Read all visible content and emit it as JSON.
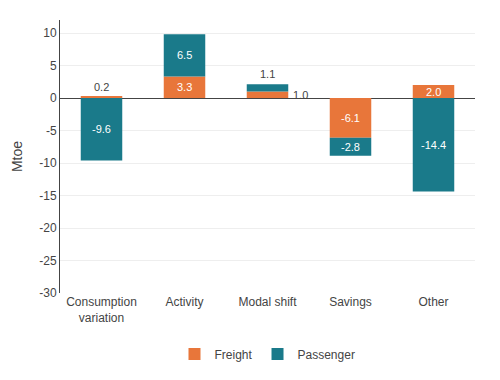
{
  "chart_data": {
    "type": "bar",
    "categories": [
      "Consumption\nvariation",
      "Activity",
      "Modal shift",
      "Savings",
      "Other"
    ],
    "series": [
      {
        "name": "Freight",
        "color": "#E8763A",
        "values": [
          0.2,
          3.3,
          1.0,
          -6.1,
          2.0
        ],
        "value_labels": [
          "0.2",
          "3.3",
          "1.0",
          "-6.1",
          "2.0"
        ]
      },
      {
        "name": "Passenger",
        "color": "#1A7A8A",
        "values": [
          -9.6,
          6.5,
          1.1,
          -2.8,
          -14.4
        ],
        "value_labels": [
          "-9.6",
          "6.5",
          "1.1",
          "-2.8",
          "-14.4"
        ]
      }
    ],
    "ylabel": "Mtoe",
    "ylim": [
      -30,
      12
    ],
    "yticks": [
      10,
      5,
      0,
      -5,
      -10,
      -15,
      -20,
      -25,
      -30
    ],
    "stacked": true,
    "grid": true,
    "legend": "bottom",
    "data_labels": true
  }
}
